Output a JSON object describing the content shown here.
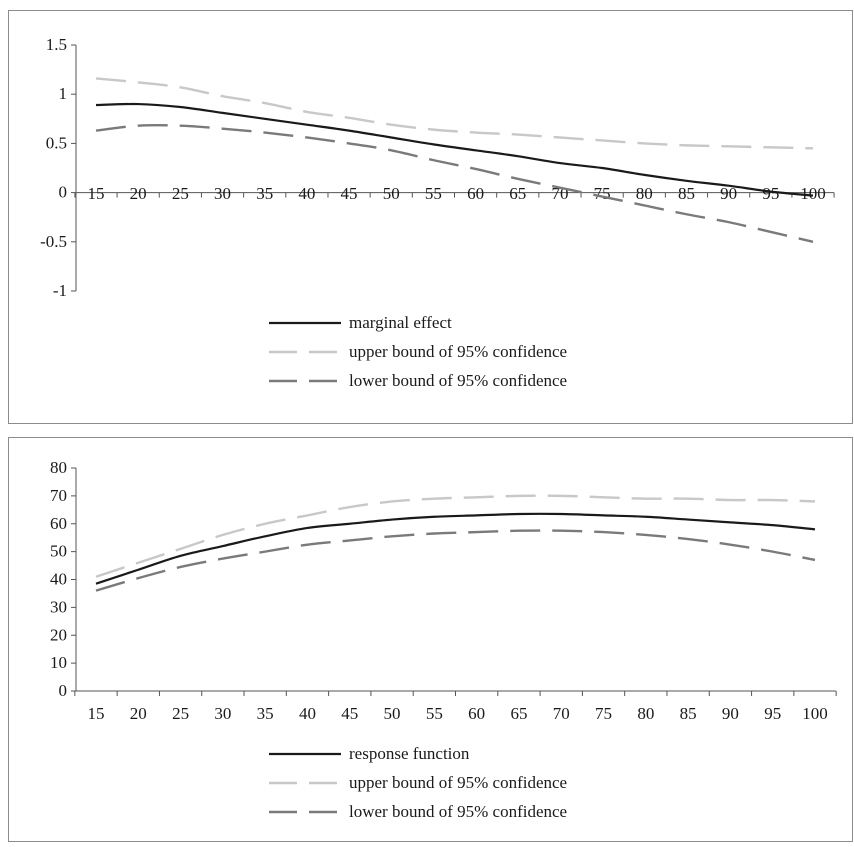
{
  "chart_data": [
    {
      "type": "line",
      "x": [
        15,
        20,
        25,
        30,
        35,
        40,
        45,
        50,
        55,
        60,
        65,
        70,
        75,
        80,
        85,
        90,
        95,
        100
      ],
      "ylim": [
        -1,
        1.5
      ],
      "yticks": [
        "1.5",
        "1",
        "0.5",
        "0",
        "-0.5",
        "-1"
      ],
      "ytick_values": [
        1.5,
        1,
        0.5,
        0,
        -0.5,
        -1
      ],
      "xticks": [
        "15",
        "20",
        "25",
        "30",
        "35",
        "40",
        "45",
        "50",
        "55",
        "60",
        "65",
        "70",
        "75",
        "80",
        "85",
        "90",
        "95",
        "100"
      ],
      "grid": false,
      "legend_position": "bottom",
      "series": [
        {
          "name": "marginal effect",
          "style": "solid",
          "color": "#1a1a1a",
          "values": [
            0.89,
            0.9,
            0.87,
            0.81,
            0.75,
            0.69,
            0.63,
            0.56,
            0.49,
            0.43,
            0.37,
            0.3,
            0.25,
            0.18,
            0.12,
            0.07,
            0.01,
            -0.03
          ]
        },
        {
          "name": "upper bound of 95% confidence",
          "style": "dashed",
          "color": "#c8c8c8",
          "values": [
            1.16,
            1.12,
            1.07,
            0.98,
            0.91,
            0.82,
            0.76,
            0.69,
            0.64,
            0.61,
            0.59,
            0.56,
            0.53,
            0.5,
            0.48,
            0.47,
            0.46,
            0.45
          ]
        },
        {
          "name": "lower bound of 95% confidence",
          "style": "dashed",
          "color": "#7a7a7a",
          "values": [
            0.63,
            0.68,
            0.68,
            0.65,
            0.61,
            0.56,
            0.5,
            0.43,
            0.33,
            0.24,
            0.14,
            0.05,
            -0.04,
            -0.13,
            -0.22,
            -0.3,
            -0.4,
            -0.5
          ]
        }
      ]
    },
    {
      "type": "line",
      "x": [
        15,
        20,
        25,
        30,
        35,
        40,
        45,
        50,
        55,
        60,
        65,
        70,
        75,
        80,
        85,
        90,
        95,
        100
      ],
      "ylim": [
        0,
        80
      ],
      "yticks": [
        "80",
        "70",
        "60",
        "50",
        "40",
        "30",
        "20",
        "10",
        "0"
      ],
      "ytick_values": [
        80,
        70,
        60,
        50,
        40,
        30,
        20,
        10,
        0
      ],
      "xticks": [
        "15",
        "20",
        "25",
        "30",
        "35",
        "40",
        "45",
        "50",
        "55",
        "60",
        "65",
        "70",
        "75",
        "80",
        "85",
        "90",
        "95",
        "100"
      ],
      "grid": false,
      "legend_position": "bottom",
      "series": [
        {
          "name": "response function",
          "style": "solid",
          "color": "#1a1a1a",
          "values": [
            38.5,
            43.5,
            48.5,
            52.0,
            55.5,
            58.5,
            60.0,
            61.5,
            62.5,
            63.0,
            63.5,
            63.5,
            63.0,
            62.5,
            61.5,
            60.5,
            59.5,
            58.0
          ]
        },
        {
          "name": "upper bound of 95% confidence",
          "style": "dashed",
          "color": "#c8c8c8",
          "values": [
            41.0,
            46.0,
            51.0,
            56.0,
            60.0,
            63.0,
            66.0,
            68.0,
            69.0,
            69.5,
            70.0,
            70.0,
            69.5,
            69.0,
            69.0,
            68.5,
            68.5,
            68.0
          ]
        },
        {
          "name": "lower bound of 95% confidence",
          "style": "dashed",
          "color": "#7a7a7a",
          "values": [
            36.0,
            40.5,
            44.5,
            47.5,
            50.0,
            52.5,
            54.0,
            55.5,
            56.5,
            57.0,
            57.5,
            57.5,
            57.0,
            56.0,
            54.5,
            52.5,
            50.0,
            47.0
          ]
        }
      ]
    }
  ]
}
